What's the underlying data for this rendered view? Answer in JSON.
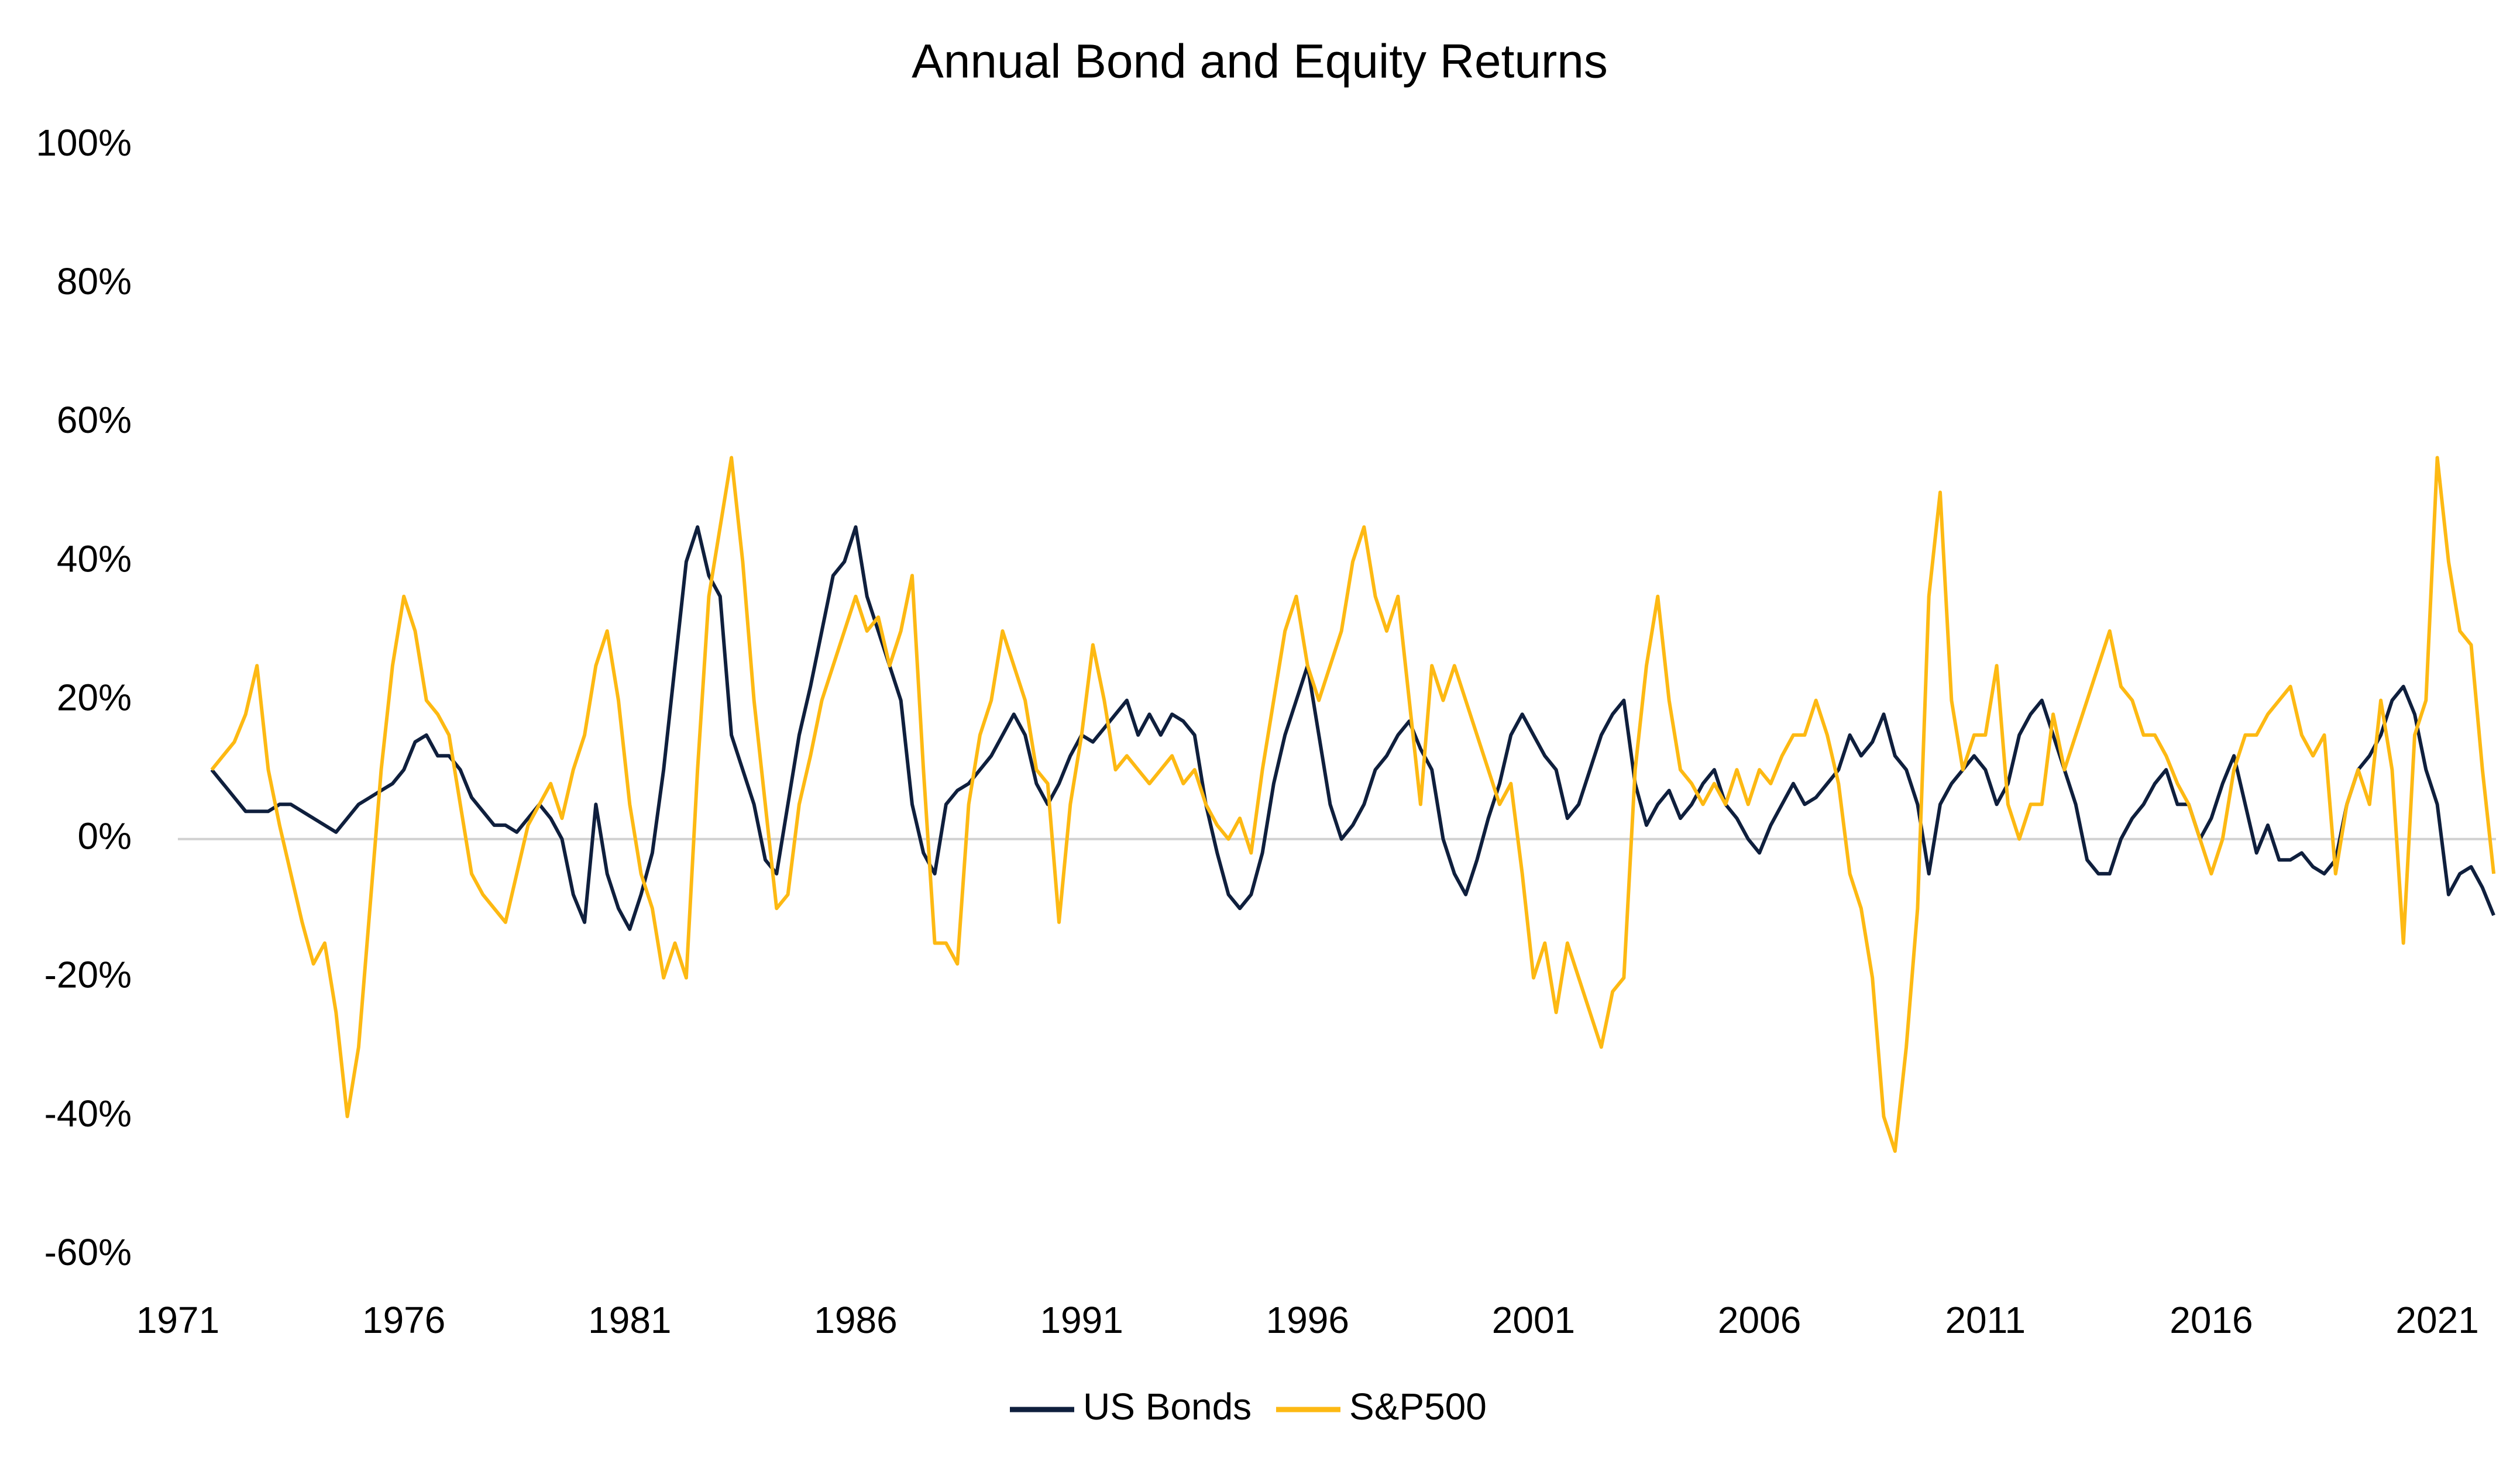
{
  "chart_data": {
    "type": "line",
    "title": "Annual Bond and Equity Returns",
    "x": [
      1971.75,
      1972,
      1972.25,
      1972.5,
      1972.75,
      1973,
      1973.25,
      1973.5,
      1973.75,
      1974,
      1974.25,
      1974.5,
      1974.75,
      1975,
      1975.25,
      1975.5,
      1975.75,
      1976,
      1976.25,
      1976.5,
      1976.75,
      1977,
      1977.25,
      1977.5,
      1977.75,
      1978,
      1978.25,
      1978.5,
      1978.75,
      1979,
      1979.25,
      1979.5,
      1979.75,
      1980,
      1980.25,
      1980.5,
      1980.75,
      1981,
      1981.25,
      1981.5,
      1981.75,
      1982,
      1982.25,
      1982.5,
      1982.75,
      1983,
      1983.25,
      1983.5,
      1983.75,
      1984,
      1984.25,
      1984.5,
      1984.75,
      1985,
      1985.25,
      1985.5,
      1985.75,
      1986,
      1986.25,
      1986.5,
      1986.75,
      1987,
      1987.25,
      1987.5,
      1987.75,
      1988,
      1988.25,
      1988.5,
      1988.75,
      1989,
      1989.25,
      1989.5,
      1989.75,
      1990,
      1990.25,
      1990.5,
      1990.75,
      1991,
      1991.25,
      1991.5,
      1991.75,
      1992,
      1992.25,
      1992.5,
      1992.75,
      1993,
      1993.25,
      1993.5,
      1993.75,
      1994,
      1994.25,
      1994.5,
      1994.75,
      1995,
      1995.25,
      1995.5,
      1995.75,
      1996,
      1996.25,
      1996.5,
      1996.75,
      1997,
      1997.25,
      1997.5,
      1997.75,
      1998,
      1998.25,
      1998.5,
      1998.75,
      1999,
      1999.25,
      1999.5,
      1999.75,
      2000,
      2000.25,
      2000.5,
      2000.75,
      2001,
      2001.25,
      2001.5,
      2001.75,
      2002,
      2002.25,
      2002.5,
      2002.75,
      2003,
      2003.25,
      2003.5,
      2003.75,
      2004,
      2004.25,
      2004.5,
      2004.75,
      2005,
      2005.25,
      2005.5,
      2005.75,
      2006,
      2006.25,
      2006.5,
      2006.75,
      2007,
      2007.25,
      2007.5,
      2007.75,
      2008,
      2008.25,
      2008.5,
      2008.75,
      2009,
      2009.25,
      2009.5,
      2009.75,
      2010,
      2010.25,
      2010.5,
      2010.75,
      2011,
      2011.25,
      2011.5,
      2011.75,
      2012,
      2012.25,
      2012.5,
      2012.75,
      2013,
      2013.25,
      2013.5,
      2013.75,
      2014,
      2014.25,
      2014.5,
      2014.75,
      2015,
      2015.25,
      2015.5,
      2015.75,
      2016,
      2016.25,
      2016.5,
      2016.75,
      2017,
      2017.25,
      2017.5,
      2017.75,
      2018,
      2018.25,
      2018.5,
      2018.75,
      2019,
      2019.25,
      2019.5,
      2019.75,
      2020,
      2020.25,
      2020.5,
      2020.75,
      2021,
      2021.25,
      2021.5,
      2021.75,
      2022,
      2022.25
    ],
    "series": [
      {
        "name": "US Bonds",
        "color": "#0f1f3d",
        "values": [
          10,
          8,
          6,
          4,
          4,
          4,
          5,
          5,
          4,
          3,
          2,
          1,
          3,
          5,
          6,
          7,
          8,
          10,
          14,
          15,
          12,
          12,
          10,
          6,
          4,
          2,
          2,
          1,
          3,
          5,
          3,
          0,
          -8,
          -12,
          5,
          -5,
          -10,
          -13,
          -8,
          -2,
          10,
          25,
          40,
          45,
          38,
          35,
          15,
          10,
          5,
          -3,
          -5,
          5,
          15,
          22,
          30,
          38,
          40,
          45,
          35,
          30,
          25,
          20,
          5,
          -2,
          -5,
          5,
          7,
          8,
          10,
          12,
          15,
          18,
          15,
          8,
          5,
          8,
          12,
          15,
          14,
          16,
          18,
          20,
          15,
          18,
          15,
          18,
          17,
          15,
          5,
          -2,
          -8,
          -10,
          -8,
          -2,
          8,
          15,
          20,
          25,
          15,
          5,
          0,
          2,
          5,
          10,
          12,
          15,
          17,
          13,
          10,
          0,
          -5,
          -8,
          -3,
          3,
          8,
          15,
          18,
          15,
          12,
          10,
          3,
          5,
          10,
          15,
          18,
          20,
          8,
          2,
          5,
          7,
          3,
          5,
          8,
          10,
          5,
          3,
          0,
          -2,
          2,
          5,
          8,
          5,
          6,
          8,
          10,
          15,
          12,
          14,
          18,
          12,
          10,
          5,
          -5,
          5,
          8,
          10,
          12,
          10,
          5,
          8,
          15,
          18,
          20,
          15,
          10,
          5,
          -3,
          -5,
          -5,
          0,
          3,
          5,
          8,
          10,
          5,
          5,
          0,
          3,
          8,
          12,
          5,
          -2,
          2,
          -3,
          -3,
          -2,
          -4,
          -5,
          -3,
          5,
          10,
          12,
          15,
          20,
          22,
          18,
          10,
          5,
          -8,
          -5,
          -4,
          -7,
          -11
        ]
      },
      {
        "name": "S&P500",
        "color": "#fdb913",
        "values": [
          10,
          12,
          14,
          18,
          25,
          10,
          2,
          -5,
          -12,
          -18,
          -15,
          -25,
          -40,
          -30,
          -10,
          10,
          25,
          35,
          30,
          20,
          18,
          15,
          5,
          -5,
          -8,
          -10,
          -12,
          -5,
          2,
          5,
          8,
          3,
          10,
          15,
          25,
          30,
          20,
          5,
          -5,
          -10,
          -20,
          -15,
          -20,
          10,
          35,
          45,
          55,
          40,
          20,
          5,
          -10,
          -8,
          5,
          12,
          20,
          25,
          30,
          35,
          30,
          32,
          25,
          30,
          38,
          10,
          -15,
          -15,
          -18,
          5,
          15,
          20,
          30,
          25,
          20,
          10,
          8,
          -12,
          5,
          15,
          28,
          20,
          10,
          12,
          10,
          8,
          10,
          12,
          8,
          10,
          5,
          2,
          0,
          3,
          -2,
          10,
          20,
          30,
          35,
          25,
          20,
          25,
          30,
          40,
          45,
          35,
          30,
          35,
          20,
          5,
          25,
          20,
          25,
          20,
          15,
          10,
          5,
          8,
          -5,
          -20,
          -15,
          -25,
          -15,
          -20,
          -25,
          -30,
          -22,
          -20,
          10,
          25,
          35,
          20,
          10,
          8,
          5,
          8,
          5,
          10,
          5,
          10,
          8,
          12,
          15,
          15,
          20,
          15,
          8,
          -5,
          -10,
          -20,
          -40,
          -45,
          -30,
          -10,
          35,
          50,
          20,
          10,
          15,
          15,
          25,
          5,
          0,
          5,
          5,
          18,
          10,
          15,
          20,
          25,
          30,
          22,
          20,
          15,
          15,
          12,
          8,
          5,
          0,
          -5,
          0,
          10,
          15,
          15,
          18,
          20,
          22,
          15,
          12,
          15,
          -5,
          5,
          10,
          5,
          20,
          10,
          -15,
          15,
          20,
          55,
          40,
          30,
          28,
          10,
          -5
        ]
      }
    ],
    "xlim": [
      1971,
      2022.3
    ],
    "xticks": [
      1971,
      1976,
      1981,
      1986,
      1991,
      1996,
      2001,
      2006,
      2011,
      2016,
      2021
    ],
    "ylim": [
      -60,
      100
    ],
    "yticks": [
      {
        "value": -60,
        "label": "-60%"
      },
      {
        "value": -40,
        "label": "-40%"
      },
      {
        "value": -20,
        "label": "-20%"
      },
      {
        "value": 0,
        "label": "0%"
      },
      {
        "value": 20,
        "label": "20%"
      },
      {
        "value": 40,
        "label": "40%"
      },
      {
        "value": 60,
        "label": "60%"
      },
      {
        "value": 80,
        "label": "80%"
      },
      {
        "value": 100,
        "label": "100%"
      }
    ],
    "grid": false,
    "legend": "bottom"
  }
}
